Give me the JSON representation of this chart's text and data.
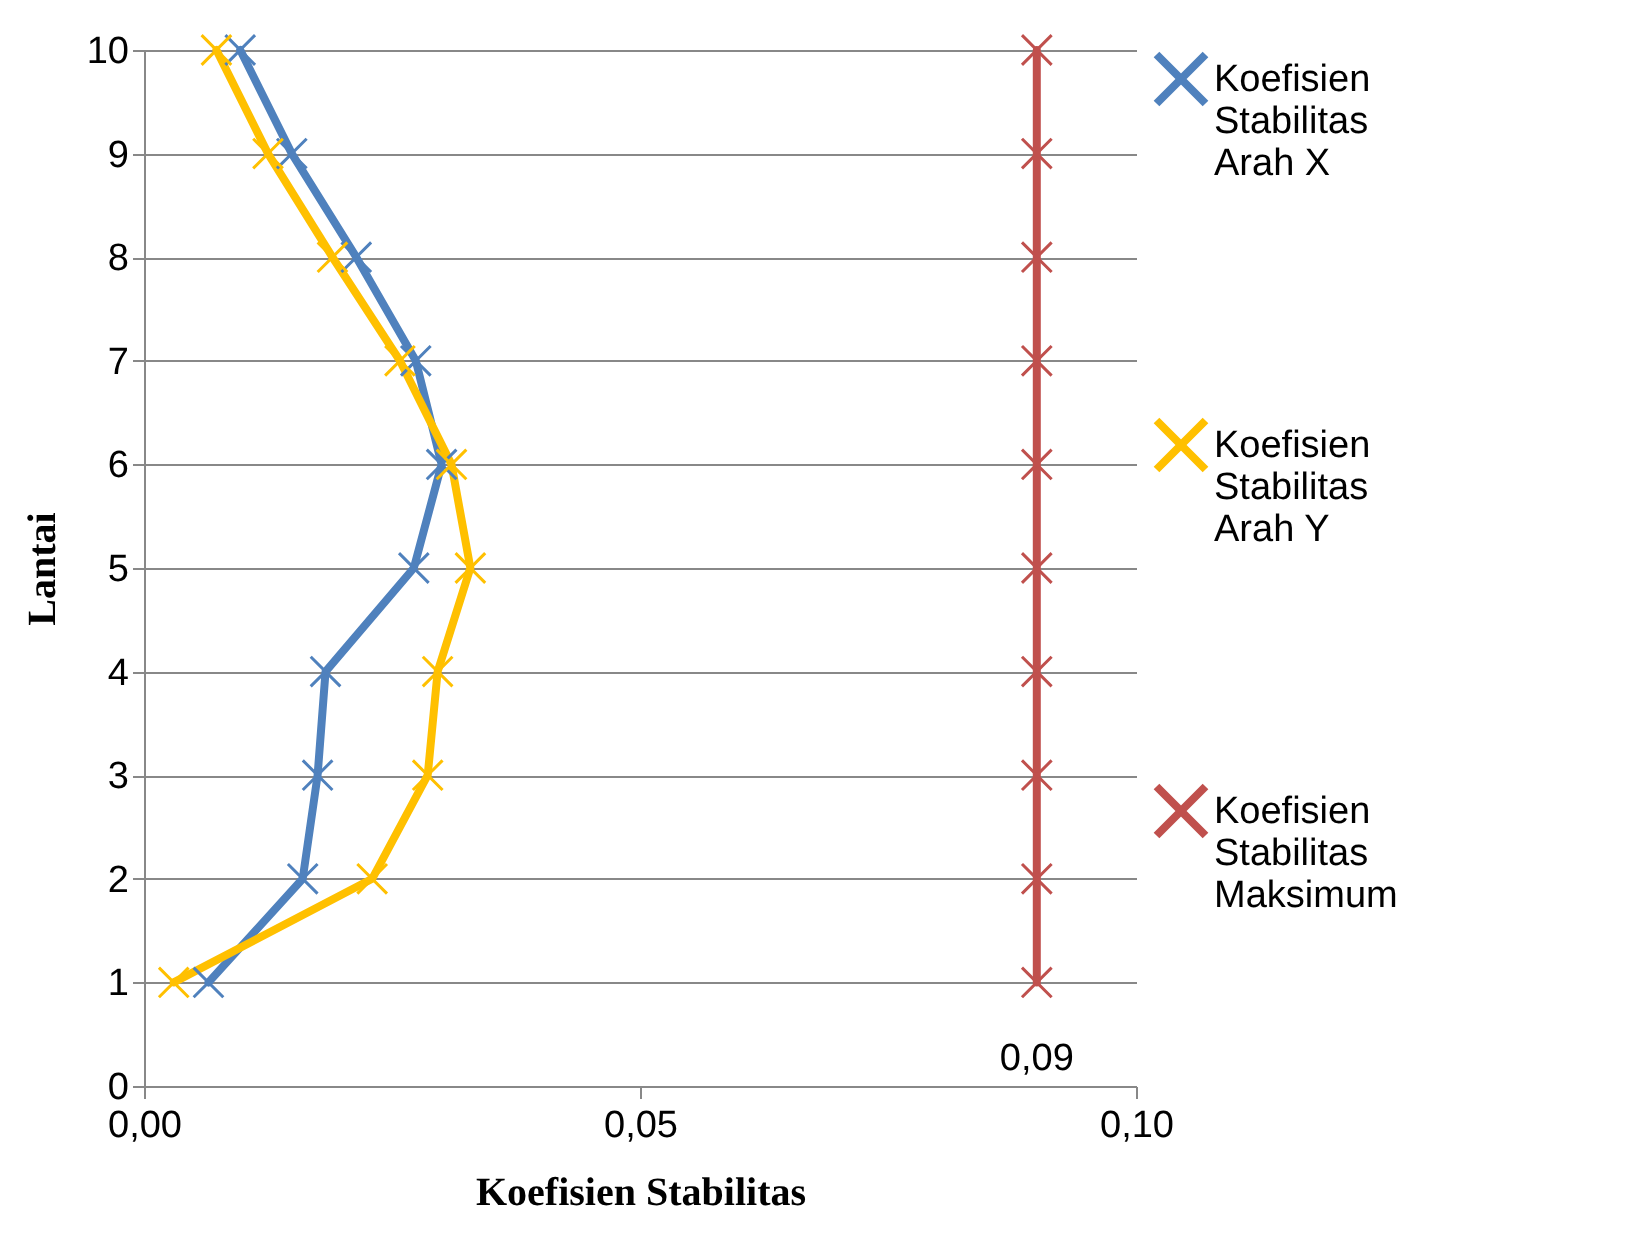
{
  "chart_data": {
    "type": "line",
    "xlabel": "Koefisien Stabilitas",
    "ylabel": "Lantai",
    "xlim": [
      0,
      0.1
    ],
    "xticks": [
      {
        "value": 0,
        "label": "0,00"
      },
      {
        "value": 0.05,
        "label": "0,05"
      },
      {
        "value": 0.1,
        "label": "0,10"
      }
    ],
    "ylim": [
      0,
      10
    ],
    "yticks": [
      0,
      1,
      2,
      3,
      4,
      5,
      6,
      7,
      8,
      9,
      10
    ],
    "grid": "y",
    "legend": "right",
    "marker": "cross",
    "line_style": "solid",
    "annotations": [
      {
        "text": "0,09",
        "x": 0.09,
        "y": 1
      }
    ],
    "series": [
      {
        "name": "Koefisien Stabilitas Arah X",
        "color": "#4f81bd",
        "x": [
          0.0065,
          0.016,
          0.0175,
          0.0183,
          0.0272,
          0.03,
          0.0274,
          0.0214,
          0.0149,
          0.0097
        ],
        "values": [
          1,
          2,
          3,
          4,
          5,
          6,
          7,
          8,
          9,
          10
        ]
      },
      {
        "name": "Koefisien Stabilitas Arah Y",
        "color": "#ffc000",
        "x": [
          0.003,
          0.023,
          0.0286,
          0.0296,
          0.0329,
          0.031,
          0.0258,
          0.019,
          0.0125,
          0.0073
        ],
        "values": [
          1,
          2,
          3,
          4,
          5,
          6,
          7,
          8,
          9,
          10
        ]
      },
      {
        "name": "Koefisien Stabilitas Maksimum",
        "color": "#c0504d",
        "x": [
          0.09,
          0.09,
          0.09,
          0.09,
          0.09,
          0.09,
          0.09,
          0.09,
          0.09,
          0.09
        ],
        "values": [
          1,
          2,
          3,
          4,
          5,
          6,
          7,
          8,
          9,
          10
        ]
      }
    ]
  }
}
